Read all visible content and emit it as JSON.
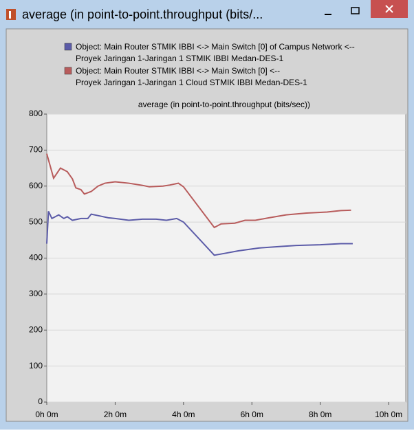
{
  "window": {
    "title": "average (in point-to-point.throughput (bits/..."
  },
  "chart_data": {
    "type": "line",
    "title": "average (in point-to-point.throughput (bits/sec))",
    "xlim": [
      0,
      10.5
    ],
    "ylim": [
      0,
      800
    ],
    "xticks": [
      {
        "value": 0,
        "label": "0h 0m"
      },
      {
        "value": 2,
        "label": "2h 0m"
      },
      {
        "value": 4,
        "label": "4h 0m"
      },
      {
        "value": 6,
        "label": "6h 0m"
      },
      {
        "value": 8,
        "label": "8h 0m"
      },
      {
        "value": 10,
        "label": "10h 0m"
      }
    ],
    "yticks": [
      0,
      100,
      200,
      300,
      400,
      500,
      600,
      700,
      800
    ],
    "grid": true,
    "series": [
      {
        "name": "Object: Main Router STMIK IBBI <-> Main Switch [0] of Campus Network <--\nProyek Jaringan 1-Jaringan 1 STMIK IBBI Medan-DES-1",
        "color": "#5b5ba8",
        "x": [
          0,
          0.05,
          0.15,
          0.35,
          0.5,
          0.6,
          0.75,
          1.0,
          1.2,
          1.3,
          1.5,
          1.8,
          2.0,
          2.4,
          2.8,
          3.2,
          3.5,
          3.8,
          4.0,
          4.9,
          5.2,
          5.6,
          6.2,
          6.8,
          7.3,
          8.0,
          8.6,
          8.95
        ],
        "values": [
          440,
          530,
          510,
          520,
          510,
          515,
          505,
          510,
          510,
          522,
          518,
          512,
          510,
          505,
          508,
          508,
          505,
          510,
          500,
          408,
          413,
          420,
          428,
          432,
          435,
          437,
          440,
          440
        ]
      },
      {
        "name": "Object: Main Router STMIK IBBI <-> Main Switch [0] <--\nProyek Jaringan 1-Jaringan  1 Cloud STMIK IBBI Medan-DES-1",
        "color": "#b85c5c",
        "x": [
          0,
          0.2,
          0.4,
          0.6,
          0.75,
          0.85,
          1.0,
          1.1,
          1.3,
          1.5,
          1.7,
          2.0,
          2.4,
          2.8,
          3.0,
          3.4,
          3.6,
          3.85,
          4.0,
          4.9,
          5.1,
          5.5,
          5.8,
          6.1,
          6.5,
          7.0,
          7.6,
          8.2,
          8.6,
          8.9
        ],
        "values": [
          690,
          622,
          650,
          640,
          620,
          595,
          590,
          578,
          585,
          600,
          608,
          612,
          608,
          602,
          598,
          600,
          603,
          608,
          598,
          485,
          495,
          497,
          505,
          505,
          512,
          520,
          525,
          528,
          532,
          533
        ]
      }
    ]
  }
}
